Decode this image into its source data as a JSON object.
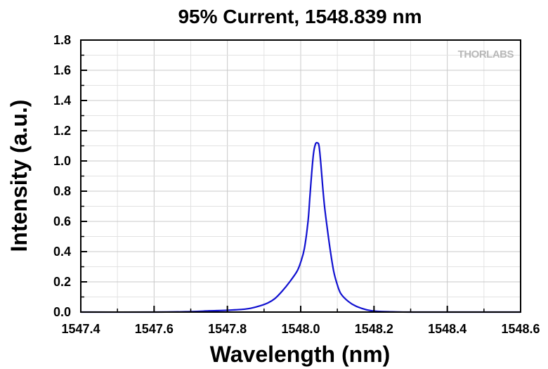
{
  "chart_data": {
    "type": "line",
    "title": "95% Current, 1548.839 nm",
    "xlabel": "Wavelength (nm)",
    "ylabel": "Intensity (a.u.)",
    "xlim": [
      1547.4,
      1548.6
    ],
    "ylim": [
      0.0,
      1.8
    ],
    "xticks": [
      "1547.4",
      "1547.6",
      "1547.8",
      "1548.0",
      "1548.2",
      "1548.4",
      "1548.6"
    ],
    "yticks": [
      "0.0",
      "0.2",
      "0.4",
      "0.6",
      "0.8",
      "1.0",
      "1.2",
      "1.4",
      "1.6",
      "1.8"
    ],
    "grid": true,
    "watermark": "THORLABS",
    "series": [
      {
        "color": "#1010d0",
        "x": [
          1547.4,
          1547.6,
          1547.7,
          1547.75,
          1547.8,
          1547.85,
          1547.88,
          1547.91,
          1547.93,
          1547.95,
          1547.97,
          1547.99,
          1548.0,
          1548.01,
          1548.02,
          1548.025,
          1548.03,
          1548.035,
          1548.04,
          1548.045,
          1548.05,
          1548.055,
          1548.06,
          1548.065,
          1548.07,
          1548.08,
          1548.09,
          1548.1,
          1548.11,
          1548.13,
          1548.15,
          1548.18,
          1548.21,
          1548.25,
          1548.3,
          1548.4,
          1548.6
        ],
        "y": [
          0.0,
          0.0,
          0.003,
          0.008,
          0.012,
          0.02,
          0.035,
          0.06,
          0.09,
          0.14,
          0.2,
          0.27,
          0.33,
          0.42,
          0.6,
          0.76,
          0.92,
          1.05,
          1.11,
          1.12,
          1.1,
          0.98,
          0.83,
          0.7,
          0.6,
          0.42,
          0.27,
          0.18,
          0.12,
          0.07,
          0.04,
          0.015,
          0.005,
          0.002,
          0.0,
          0.0,
          0.0
        ]
      }
    ]
  }
}
